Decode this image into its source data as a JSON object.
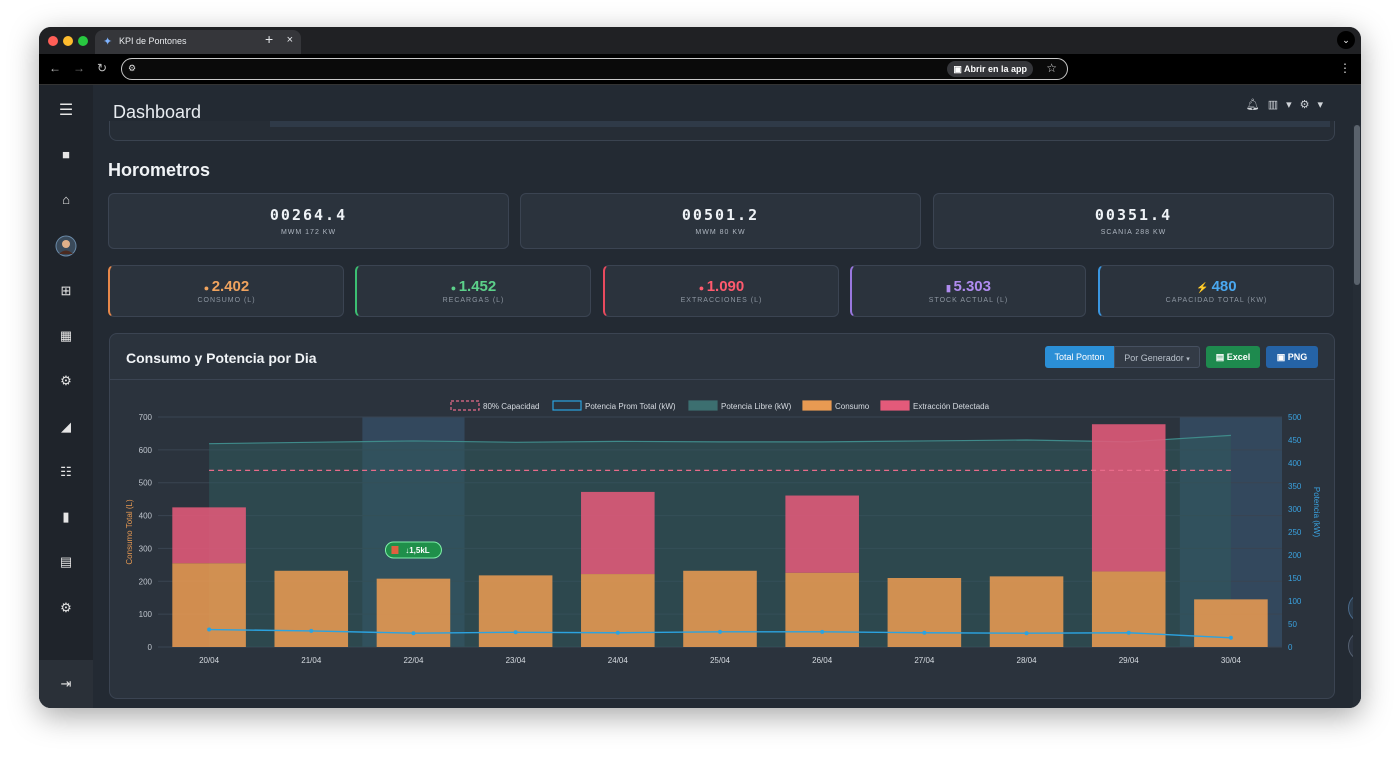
{
  "browser": {
    "tab_title": "KPI de Pontones",
    "new_tab": "+",
    "close": "×",
    "open_in_app": "Abrir en la app"
  },
  "header": {
    "title": "Dashboard"
  },
  "section": {
    "title": "Horometros"
  },
  "horometros": [
    {
      "value": "00264.4",
      "label": "MWM 172 KW"
    },
    {
      "value": "00501.2",
      "label": "MWM 80 KW"
    },
    {
      "value": "00351.4",
      "label": "SCANIA 288 KW"
    }
  ],
  "kpis": [
    {
      "icon": "flame-icon",
      "glyph": "●",
      "value": "2.402",
      "label": "CONSUMO (L)",
      "color": "#f0a35e",
      "border": "#e8884a"
    },
    {
      "icon": "recharge-icon",
      "glyph": "●",
      "value": "1.452",
      "label": "RECARGAS (L)",
      "color": "#5cd08a",
      "border": "#3cbf72"
    },
    {
      "icon": "extraction-icon",
      "glyph": "●",
      "value": "1.090",
      "label": "EXTRACCIONES (L)",
      "color": "#ff5a6e",
      "border": "#e84a5e"
    },
    {
      "icon": "fuel-pump-icon",
      "glyph": "▮",
      "value": "5.303",
      "label": "STOCK ACTUAL (L)",
      "color": "#b08cf0",
      "border": "#9a78e0"
    },
    {
      "icon": "bolt-icon",
      "glyph": "⚡",
      "value": "480",
      "label": "CAPACIDAD TOTAL (KW)",
      "color": "#4aa8f0",
      "border": "#3a96e0"
    }
  ],
  "chart_card": {
    "title": "Consumo y Potencia por Dia",
    "buttons": {
      "total": "Total Ponton",
      "by_generator": "Por Generador",
      "excel": "Excel",
      "png": "PNG"
    }
  },
  "chart_data": {
    "type": "bar",
    "categories": [
      "20/04",
      "21/04",
      "22/04",
      "23/04",
      "24/04",
      "25/04",
      "26/04",
      "27/04",
      "28/04",
      "29/04",
      "30/04"
    ],
    "series": [
      {
        "name": "Consumo",
        "values": [
          255,
          232,
          208,
          218,
          222,
          232,
          226,
          210,
          215,
          230,
          145
        ],
        "color": "#e89a52"
      },
      {
        "name": "Extracción Detectada",
        "values": [
          170,
          0,
          0,
          0,
          250,
          0,
          235,
          0,
          0,
          448,
          0
        ],
        "color": "#e35a7a"
      },
      {
        "name": "Potencia Prom Total (kW)",
        "values": [
          38,
          35,
          30,
          32,
          31,
          33,
          33,
          31,
          30,
          31,
          20
        ],
        "color": "#2ba3e0"
      },
      {
        "name": "Potencia Libre (kW)",
        "values": [
          442,
          445,
          448,
          445,
          447,
          446,
          446,
          448,
          450,
          446,
          460
        ],
        "color": "#3c6f70"
      },
      {
        "name": "80% Capacidad",
        "values": [
          384,
          384,
          384,
          384,
          384,
          384,
          384,
          384,
          384,
          384,
          384
        ],
        "color": "#e86c8a"
      }
    ],
    "ylabel": "Consumo Total (L)",
    "y2label": "Potencia (kW)",
    "ylim": [
      0,
      700
    ],
    "y2lim": [
      0,
      500
    ],
    "yticks": [
      "0",
      "100",
      "200",
      "300",
      "400",
      "500",
      "600",
      "700"
    ],
    "y2ticks": [
      "0",
      "50",
      "100",
      "150",
      "200",
      "250",
      "300",
      "350",
      "400",
      "450",
      "500"
    ],
    "highlighted_days": [
      "22/04",
      "30/04"
    ],
    "annotation": {
      "day": "22/04",
      "text": "↓1,5kL"
    },
    "legend": [
      "80% Capacidad",
      "Potencia Prom Total (kW)",
      "Potencia Libre (kW)",
      "Consumo",
      "Extracción Detectada"
    ],
    "legend_position": "top"
  }
}
